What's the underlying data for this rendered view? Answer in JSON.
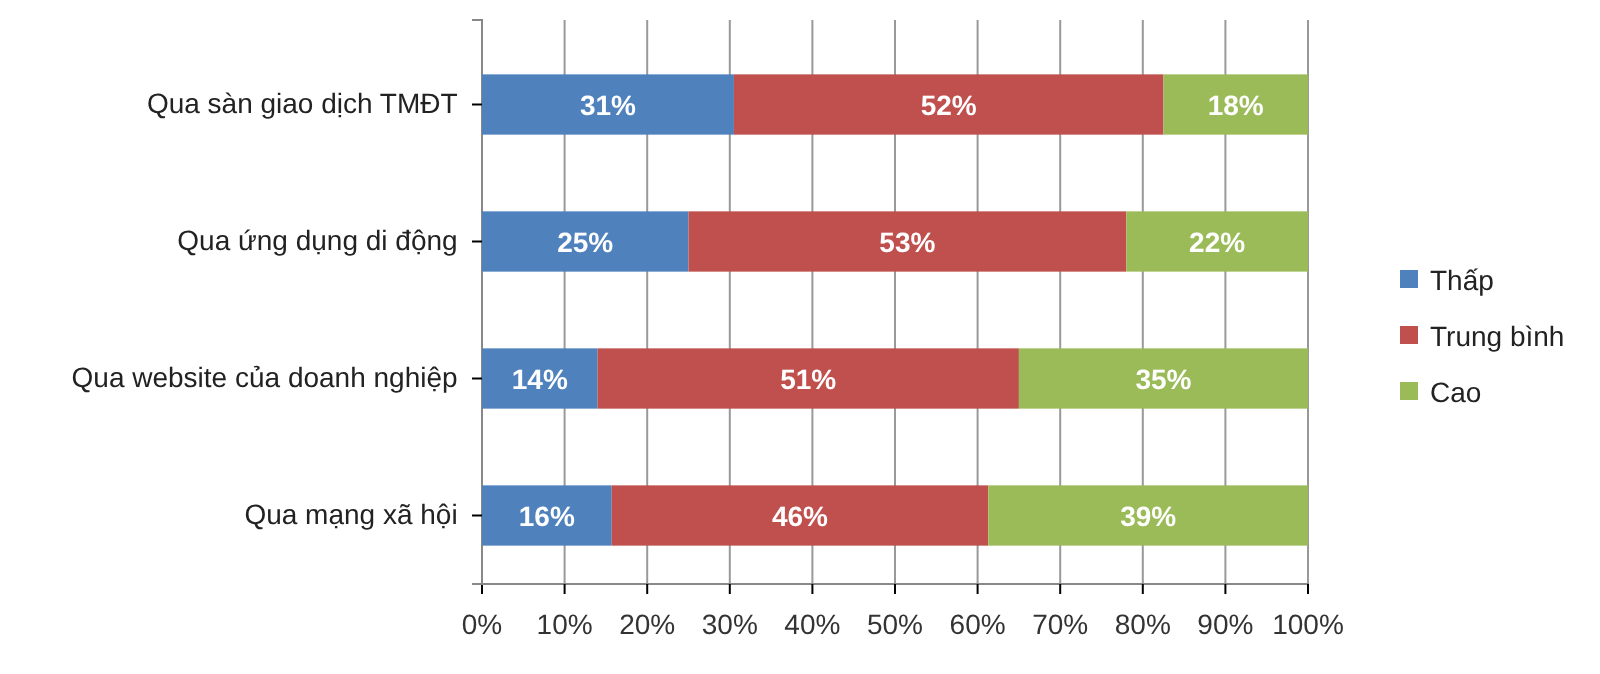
{
  "chart_data": {
    "type": "bar",
    "orientation": "horizontal",
    "stacked": true,
    "categories": [
      "Qua sàn giao dịch TMĐT",
      "Qua ứng dụng di động",
      "Qua website của doanh nghiệp",
      "Qua mạng xã hội"
    ],
    "series": [
      {
        "name": "Thấp",
        "color": "#4f81bd",
        "values": [
          30.5,
          25,
          14,
          15.7
        ],
        "value_labels": [
          "31%",
          "25%",
          "14%",
          "16%"
        ]
      },
      {
        "name": "Trung bình",
        "color": "#c0504d",
        "values": [
          52,
          53,
          51,
          45.6
        ],
        "value_labels": [
          "52%",
          "53%",
          "51%",
          "46%"
        ]
      },
      {
        "name": "Cao",
        "color": "#9bbb59",
        "values": [
          17.5,
          22,
          35,
          38.7
        ],
        "value_labels": [
          "18%",
          "22%",
          "35%",
          "39%"
        ]
      }
    ],
    "xlim": [
      0,
      100
    ],
    "xticks": [
      {
        "value": 0,
        "label": "0%"
      },
      {
        "value": 10,
        "label": "10%"
      },
      {
        "value": 20,
        "label": "20%"
      },
      {
        "value": 30,
        "label": "30%"
      },
      {
        "value": 40,
        "label": "40%"
      },
      {
        "value": 50,
        "label": "50%"
      },
      {
        "value": 60,
        "label": "60%"
      },
      {
        "value": 70,
        "label": "70%"
      },
      {
        "value": 80,
        "label": "80%"
      },
      {
        "value": 90,
        "label": "90%"
      },
      {
        "value": 100,
        "label": "100%"
      }
    ],
    "grid": "x",
    "legend": "right"
  }
}
